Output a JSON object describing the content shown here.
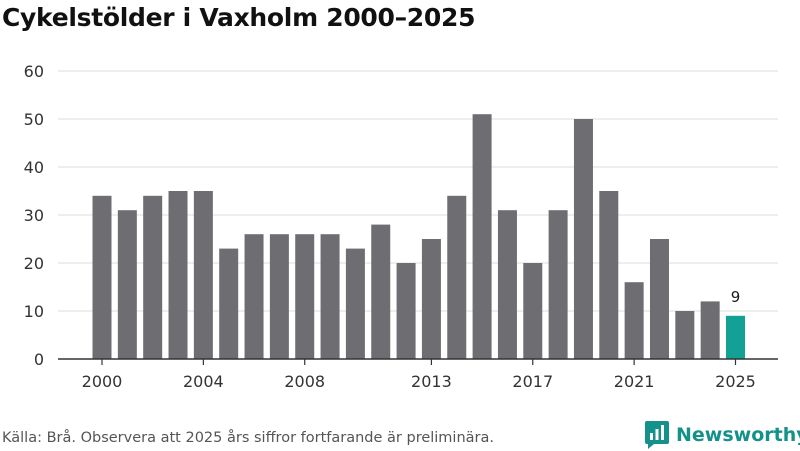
{
  "title": "Cykelstölder i Vaxholm 2000–2025",
  "footer": {
    "source": "Källa: Brå. Observera att 2025 års siffror fortfarande är preliminära."
  },
  "brand": {
    "name": "Newsworthy",
    "color": "#14918a"
  },
  "colors": {
    "bar": "#6e6d72",
    "highlight": "#13a195",
    "grid": "#dddddd",
    "axis": "#333333"
  },
  "chart_data": {
    "type": "bar",
    "title": "Cykelstölder i Vaxholm 2000–2025",
    "x": [
      2000,
      2001,
      2002,
      2003,
      2004,
      2005,
      2006,
      2007,
      2008,
      2009,
      2010,
      2011,
      2012,
      2013,
      2014,
      2015,
      2016,
      2017,
      2018,
      2019,
      2020,
      2021,
      2022,
      2023,
      2024,
      2025
    ],
    "values": [
      34,
      31,
      34,
      35,
      35,
      23,
      26,
      26,
      26,
      26,
      23,
      28,
      20,
      25,
      34,
      51,
      31,
      20,
      31,
      50,
      35,
      16,
      25,
      10,
      12,
      9
    ],
    "x_tick_labels": [
      "2000",
      "2004",
      "2008",
      "2013",
      "2017",
      "2021",
      "2025"
    ],
    "y_ticks": [
      0,
      10,
      20,
      30,
      40,
      50,
      60
    ],
    "ylim": [
      0,
      60
    ],
    "grid": true,
    "highlight": {
      "x": 2025,
      "label": "9"
    },
    "xlabel": "",
    "ylabel": ""
  }
}
